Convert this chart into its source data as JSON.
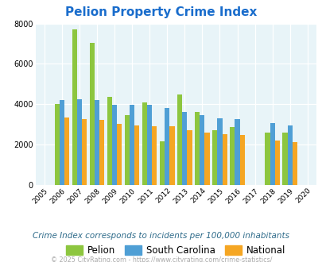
{
  "title": "Pelion Property Crime Index",
  "years": [
    2005,
    2006,
    2007,
    2008,
    2009,
    2010,
    2011,
    2012,
    2013,
    2014,
    2015,
    2016,
    2017,
    2018,
    2019,
    2020
  ],
  "pelion": [
    0,
    4000,
    7700,
    7050,
    4380,
    3450,
    4100,
    2150,
    4480,
    3600,
    2700,
    2870,
    0,
    2580,
    2600,
    0
  ],
  "south_carolina": [
    0,
    4200,
    4250,
    4200,
    3950,
    3950,
    3950,
    3820,
    3600,
    3450,
    3280,
    3250,
    0,
    3050,
    2950,
    0
  ],
  "national": [
    0,
    3350,
    3250,
    3200,
    3020,
    2950,
    2900,
    2900,
    2720,
    2600,
    2490,
    2480,
    0,
    2180,
    2100,
    0
  ],
  "pelion_color": "#8dc63f",
  "sc_color": "#4f9fd5",
  "national_color": "#f5a623",
  "bg_color": "#e8f4f8",
  "title_color": "#1a6dcc",
  "subtitle_color": "#2e6b8a",
  "footer_color": "#aaaaaa",
  "ylim": [
    0,
    8000
  ],
  "yticks": [
    0,
    2000,
    4000,
    6000,
    8000
  ],
  "subtitle": "Crime Index corresponds to incidents per 100,000 inhabitants",
  "footer": "© 2025 CityRating.com - https://www.cityrating.com/crime-statistics/"
}
